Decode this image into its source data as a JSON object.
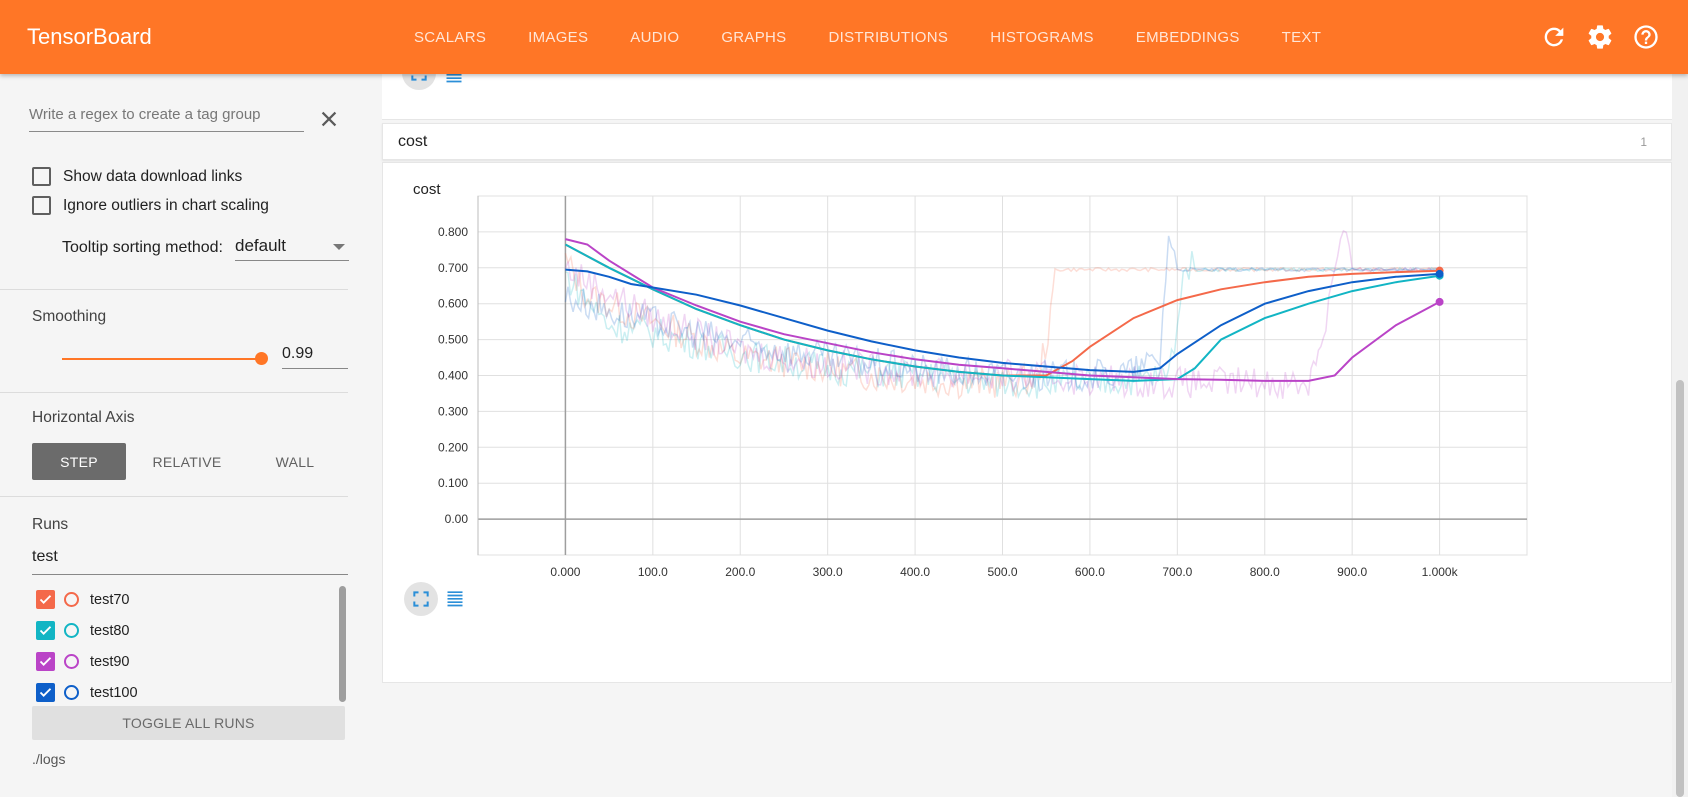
{
  "app": {
    "title": "TensorBoard"
  },
  "tabs": [
    {
      "label": "SCALARS",
      "active": true
    },
    {
      "label": "IMAGES",
      "active": false
    },
    {
      "label": "AUDIO",
      "active": false
    },
    {
      "label": "GRAPHS",
      "active": false
    },
    {
      "label": "DISTRIBUTIONS",
      "active": false
    },
    {
      "label": "HISTOGRAMS",
      "active": false
    },
    {
      "label": "EMBEDDINGS",
      "active": false
    },
    {
      "label": "TEXT",
      "active": false
    }
  ],
  "toolbar_icons": [
    "refresh-icon",
    "settings-icon",
    "help-icon"
  ],
  "sidebar": {
    "regex_placeholder": "Write a regex to create a tag group",
    "show_download_links": {
      "label": "Show data download links",
      "checked": false
    },
    "ignore_outliers": {
      "label": "Ignore outliers in chart scaling",
      "checked": false
    },
    "tooltip_sorting": {
      "label": "Tooltip sorting method:",
      "value": "default"
    },
    "smoothing": {
      "label": "Smoothing",
      "value": "0.99",
      "fraction": 0.99
    },
    "horizontal_axis": {
      "label": "Horizontal Axis",
      "options": [
        "STEP",
        "RELATIVE",
        "WALL"
      ],
      "selected": "STEP"
    },
    "runs": {
      "label": "Runs",
      "filter": "test",
      "items": [
        {
          "name": "test70",
          "checked": true,
          "color": "#f4694a"
        },
        {
          "name": "test80",
          "checked": true,
          "color": "#12b5c4"
        },
        {
          "name": "test90",
          "checked": true,
          "color": "#ba44c7"
        },
        {
          "name": "test100",
          "checked": true,
          "color": "#0e5fc9"
        }
      ],
      "toggle_label": "TOGGLE ALL RUNS",
      "log_dir": "./logs"
    }
  },
  "category": {
    "title": "cost",
    "count": "1"
  },
  "chart_data": {
    "type": "line",
    "title": "cost",
    "xlim": [
      -100,
      1100
    ],
    "ylim": [
      -0.1,
      0.9
    ],
    "x_ticks": [
      0,
      100,
      200,
      300,
      400,
      500,
      600,
      700,
      800,
      900,
      1000
    ],
    "x_tick_labels": [
      "0.000",
      "100.0",
      "200.0",
      "300.0",
      "400.0",
      "500.0",
      "600.0",
      "700.0",
      "800.0",
      "900.0",
      "1.000k"
    ],
    "y_ticks": [
      0.0,
      0.1,
      0.2,
      0.3,
      0.4,
      0.5,
      0.6,
      0.7,
      0.8
    ],
    "y_tick_labels": [
      "0.00",
      "0.100",
      "0.200",
      "0.300",
      "0.400",
      "0.500",
      "0.600",
      "0.700",
      "0.800"
    ],
    "grid": true,
    "series": [
      {
        "color": "#f4694a",
        "x": [
          0,
          50,
          100,
          150,
          200,
          250,
          300,
          350,
          400,
          450,
          500,
          550,
          580,
          600,
          650,
          700,
          750,
          800,
          850,
          900,
          950,
          1000
        ],
        "y": [
          0.765,
          0.7,
          0.64,
          0.585,
          0.54,
          0.5,
          0.47,
          0.445,
          0.425,
          0.41,
          0.4,
          0.4,
          0.44,
          0.48,
          0.56,
          0.61,
          0.64,
          0.66,
          0.675,
          0.683,
          0.688,
          0.692
        ],
        "raw_x": [
          0,
          25,
          50,
          75,
          100,
          150,
          200,
          250,
          300,
          350,
          400,
          450,
          500,
          540,
          555,
          560,
          600,
          700,
          800,
          900,
          1000
        ],
        "raw_y": [
          0.72,
          0.62,
          0.6,
          0.57,
          0.55,
          0.5,
          0.45,
          0.44,
          0.42,
          0.4,
          0.39,
          0.38,
          0.38,
          0.39,
          0.55,
          0.695,
          0.695,
          0.695,
          0.695,
          0.695,
          0.695
        ]
      },
      {
        "color": "#12b5c4",
        "x": [
          0,
          50,
          100,
          150,
          200,
          250,
          300,
          350,
          400,
          450,
          500,
          550,
          600,
          650,
          700,
          720,
          750,
          800,
          850,
          900,
          950,
          1000
        ],
        "y": [
          0.765,
          0.7,
          0.64,
          0.585,
          0.54,
          0.5,
          0.47,
          0.445,
          0.425,
          0.41,
          0.4,
          0.395,
          0.39,
          0.385,
          0.39,
          0.42,
          0.5,
          0.56,
          0.6,
          0.635,
          0.66,
          0.678
        ],
        "raw_x": [
          0,
          50,
          100,
          200,
          300,
          400,
          500,
          600,
          650,
          690,
          700,
          710,
          720,
          800,
          900,
          1000
        ],
        "raw_y": [
          0.68,
          0.54,
          0.52,
          0.46,
          0.42,
          0.4,
          0.38,
          0.38,
          0.39,
          0.4,
          0.55,
          0.72,
          0.695,
          0.695,
          0.695,
          0.695
        ]
      },
      {
        "color": "#ba44c7",
        "x": [
          0,
          25,
          50,
          100,
          150,
          200,
          250,
          300,
          350,
          400,
          450,
          500,
          550,
          600,
          650,
          700,
          750,
          800,
          850,
          880,
          900,
          950,
          1000
        ],
        "y": [
          0.78,
          0.765,
          0.72,
          0.645,
          0.595,
          0.55,
          0.515,
          0.49,
          0.465,
          0.445,
          0.43,
          0.42,
          0.41,
          0.4,
          0.395,
          0.39,
          0.388,
          0.385,
          0.385,
          0.4,
          0.45,
          0.54,
          0.605
        ],
        "raw_x": [
          0,
          100,
          200,
          300,
          400,
          500,
          600,
          700,
          800,
          850,
          870,
          880,
          890,
          900,
          1000
        ],
        "raw_y": [
          0.7,
          0.56,
          0.47,
          0.43,
          0.41,
          0.4,
          0.39,
          0.38,
          0.38,
          0.38,
          0.55,
          0.7,
          0.8,
          0.695,
          0.695
        ]
      },
      {
        "color": "#0e5fc9",
        "x": [
          0,
          25,
          50,
          75,
          100,
          150,
          200,
          250,
          300,
          350,
          400,
          450,
          500,
          550,
          600,
          650,
          680,
          700,
          750,
          800,
          850,
          900,
          950,
          1000
        ],
        "y": [
          0.695,
          0.69,
          0.675,
          0.655,
          0.645,
          0.625,
          0.595,
          0.56,
          0.525,
          0.495,
          0.47,
          0.45,
          0.435,
          0.425,
          0.415,
          0.41,
          0.42,
          0.46,
          0.54,
          0.6,
          0.635,
          0.66,
          0.675,
          0.683
        ],
        "raw_x": [
          0,
          50,
          100,
          200,
          300,
          400,
          500,
          600,
          650,
          680,
          690,
          700,
          800,
          900,
          1000
        ],
        "raw_y": [
          0.62,
          0.58,
          0.55,
          0.49,
          0.45,
          0.42,
          0.4,
          0.4,
          0.41,
          0.45,
          0.8,
          0.695,
          0.695,
          0.695,
          0.695
        ]
      }
    ]
  }
}
